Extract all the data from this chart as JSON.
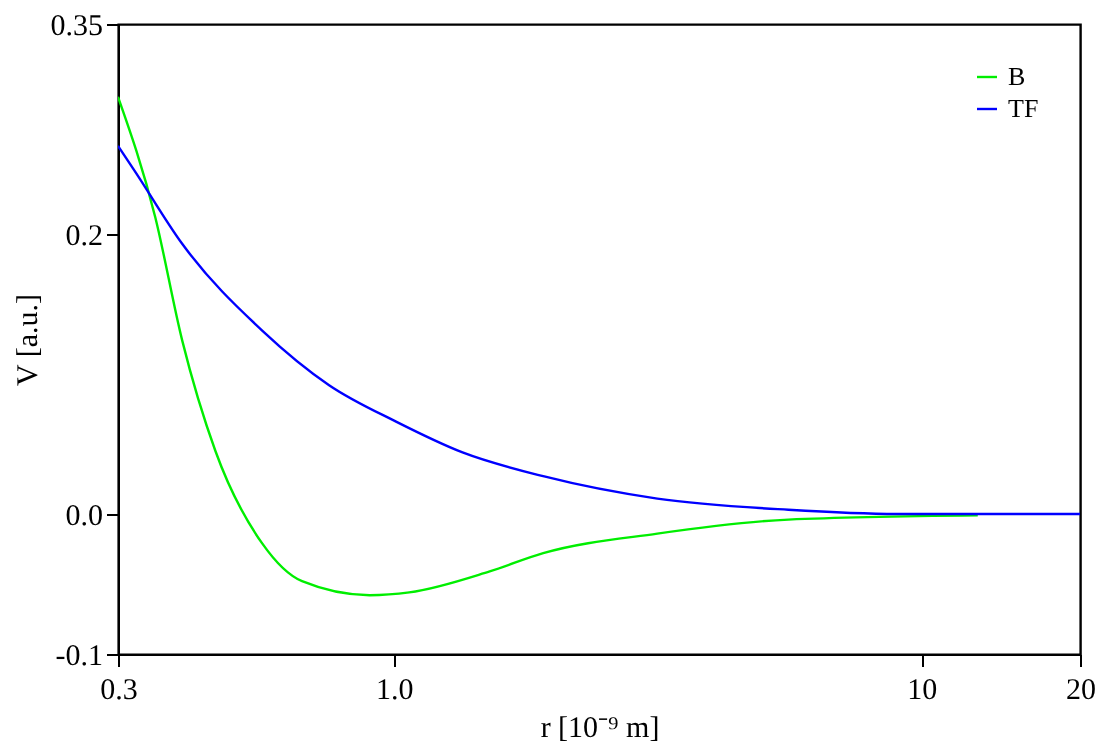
{
  "chart_data": {
    "type": "line",
    "xlabel": "r [10⁻⁹ m]",
    "ylabel": "V [a.u.]",
    "log": "x",
    "xlim": [
      0.3,
      20
    ],
    "xticks": [
      0.3,
      {
        "value": 1,
        "label": "1.0"
      },
      10,
      20
    ],
    "ylim": [
      -0.1,
      0.35
    ],
    "yticks": [
      -0.1,
      {
        "value": 0,
        "label": "0.0"
      },
      0.2,
      0.35
    ],
    "grid": false,
    "legend": "top right",
    "marker": "none",
    "line_style": "solid",
    "series": [
      {
        "name": "B",
        "color": "#00ee00",
        "x": [
          0.3,
          0.353,
          0.397,
          0.459,
          0.563,
          0.67,
          0.9,
          1.07,
          1.52,
          1.92,
          3.16,
          5.6,
          12.8
        ],
        "values": [
          0.298,
          0.212,
          0.124,
          0.045,
          -0.021,
          -0.048,
          -0.058,
          -0.056,
          -0.041,
          -0.028,
          -0.014,
          -0.004,
          -0.001
        ]
      },
      {
        "name": "TF",
        "color": "#0000ff",
        "x": [
          0.3,
          0.324,
          0.397,
          0.563,
          0.754,
          1.01,
          1.35,
          1.92,
          3.16,
          5.6,
          9,
          20
        ],
        "values": [
          0.263,
          0.244,
          0.193,
          0.131,
          0.092,
          0.066,
          0.044,
          0.027,
          0.011,
          0.003,
          0,
          0
        ]
      }
    ]
  }
}
